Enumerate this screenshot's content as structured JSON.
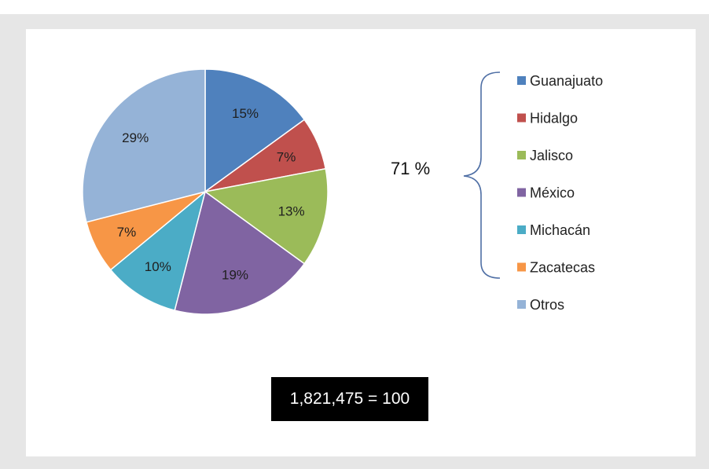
{
  "chart_data": {
    "type": "pie",
    "categories": [
      "Guanajuato",
      "Hidalgo",
      "Jalisco",
      "México",
      "Michacán",
      "Zacatecas",
      "Otros"
    ],
    "values": [
      15,
      7,
      13,
      19,
      10,
      7,
      29
    ],
    "labels": [
      "15%",
      "7%",
      "13%",
      "19%",
      "10%",
      "7%",
      "29%"
    ],
    "colors": [
      "#4f81bd",
      "#c0504d",
      "#9bbb59",
      "#8064a2",
      "#4bacc6",
      "#f79646",
      "#95b3d7"
    ],
    "start_angle_deg": 0,
    "direction": "clockwise",
    "legend_position": "right",
    "title": ""
  },
  "annotation": {
    "brace_label": "71 %"
  },
  "total": {
    "label": "1,821,475 = 100"
  }
}
